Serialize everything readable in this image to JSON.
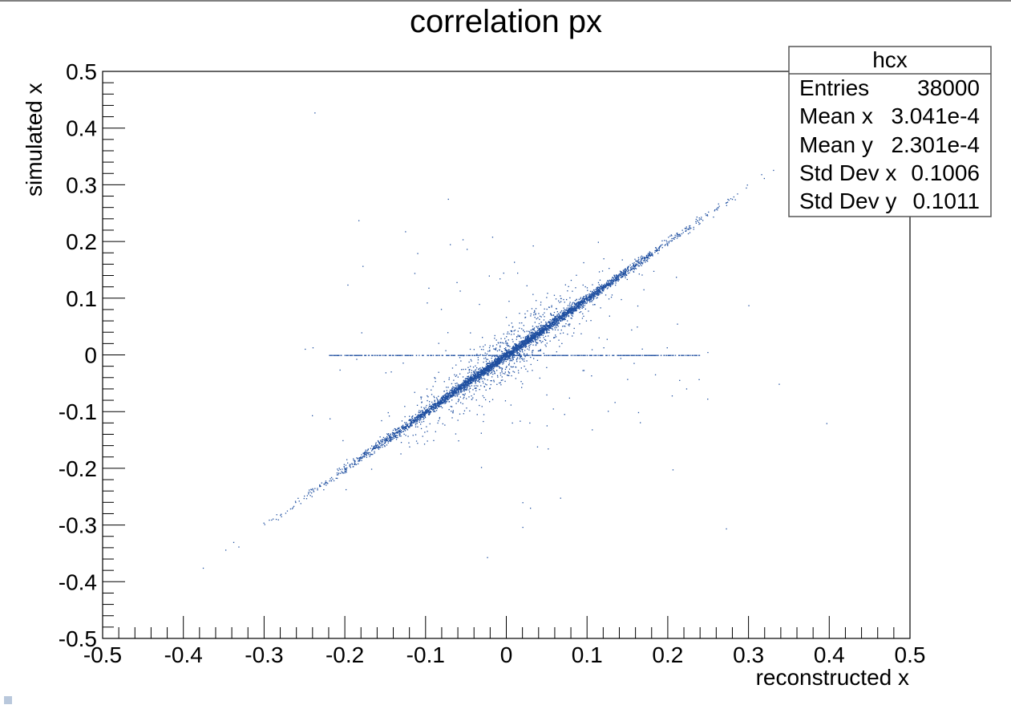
{
  "chart_data": {
    "type": "scatter",
    "title": "correlation px",
    "xlabel": "reconstructed x",
    "ylabel": "simulated x",
    "xlim": [
      -0.5,
      0.5
    ],
    "ylim": [
      -0.5,
      0.5
    ],
    "xticks": [
      "-0.5",
      "-0.4",
      "-0.3",
      "-0.2",
      "-0.1",
      "0",
      "0.1",
      "0.2",
      "0.3",
      "0.4",
      "0.5"
    ],
    "yticks": [
      "0.5",
      "0.4",
      "0.3",
      "0.2",
      "0.1",
      "0",
      "-0.1",
      "-0.2",
      "-0.3",
      "-0.4",
      "-0.5"
    ],
    "grid": false,
    "marker_color": "#1f4fa0",
    "series": [
      {
        "description_points": [
          {
            "x": -0.39,
            "y": -0.39
          },
          {
            "x": -0.35,
            "y": -0.345
          },
          {
            "x": -0.3,
            "y": -0.3
          },
          {
            "x": -0.25,
            "y": -0.25
          },
          {
            "x": -0.2,
            "y": -0.2
          },
          {
            "x": -0.15,
            "y": -0.15
          },
          {
            "x": -0.1,
            "y": -0.1
          },
          {
            "x": -0.05,
            "y": -0.05
          },
          {
            "x": 0.0,
            "y": 0.0
          },
          {
            "x": 0.05,
            "y": 0.05
          },
          {
            "x": 0.1,
            "y": 0.1
          },
          {
            "x": 0.15,
            "y": 0.15
          },
          {
            "x": 0.2,
            "y": 0.2
          },
          {
            "x": 0.25,
            "y": 0.25
          },
          {
            "x": 0.3,
            "y": 0.3
          },
          {
            "x": 0.35,
            "y": 0.35
          }
        ]
      }
    ],
    "horizontal_band": {
      "y": 0.0,
      "x_from": -0.22,
      "x_to": 0.24
    }
  },
  "stats_box": {
    "name": "hcx",
    "rows": [
      {
        "label": "Entries",
        "value": "38000"
      },
      {
        "label": "Mean x",
        "value": "3.041e-4"
      },
      {
        "label": "Mean y",
        "value": "2.301e-4"
      },
      {
        "label": "Std Dev x",
        "value": "0.1006"
      },
      {
        "label": "Std Dev y",
        "value": "0.1011"
      }
    ]
  }
}
